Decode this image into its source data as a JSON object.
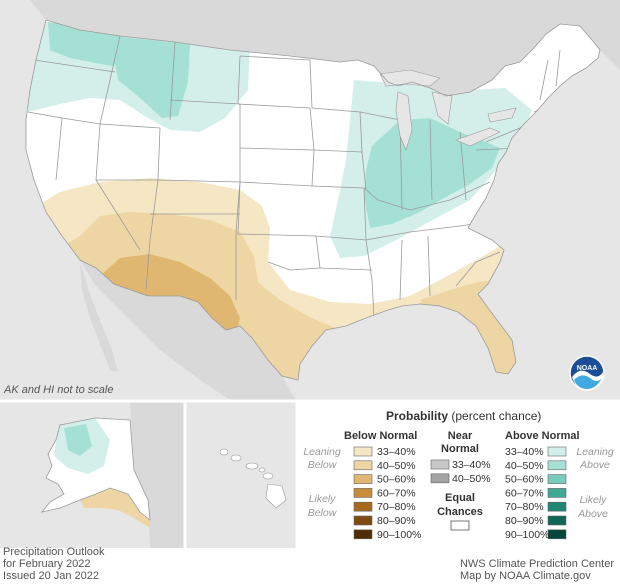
{
  "note": "AK and HI not to scale",
  "footer": {
    "left_line1": "Precipitation Outlook",
    "left_line2": "for February 2022",
    "left_line3": "Issued 20 Jan 2022",
    "right_line1": "NWS Climate Prediction Center",
    "right_line2": "Map by NOAA Climate.gov"
  },
  "logo": {
    "text": "NOAA"
  },
  "legend": {
    "title": "Probability",
    "subtitle": "(percent chance)",
    "below_header": "Below Normal",
    "near_header_1": "Near",
    "near_header_2": "Normal",
    "above_header": "Above Normal",
    "leaning_below_1": "Leaning",
    "leaning_below_2": "Below",
    "likely_below_1": "Likely",
    "likely_below_2": "Below",
    "leaning_above_1": "Leaning",
    "leaning_above_2": "Above",
    "likely_above_1": "Likely",
    "likely_above_2": "Above",
    "equal_1": "Equal",
    "equal_2": "Chances",
    "below": [
      {
        "label": "33–40%",
        "color": "#f5e7c3"
      },
      {
        "label": "40–50%",
        "color": "#eed6a4"
      },
      {
        "label": "50–60%",
        "color": "#dfb770"
      },
      {
        "label": "60–70%",
        "color": "#c98c3a"
      },
      {
        "label": "70–80%",
        "color": "#a8681f"
      },
      {
        "label": "80–90%",
        "color": "#7d4a10"
      },
      {
        "label": "90–100%",
        "color": "#4e2c05"
      }
    ],
    "near": [
      {
        "label": "33–40%",
        "color": "#c8c8c8"
      },
      {
        "label": "40–50%",
        "color": "#a3a3a3"
      }
    ],
    "above": [
      {
        "label": "33–40%",
        "color": "#d4efea"
      },
      {
        "label": "40–50%",
        "color": "#a5e0d5"
      },
      {
        "label": "50–60%",
        "color": "#7acbbd"
      },
      {
        "label": "60–70%",
        "color": "#3fa895"
      },
      {
        "label": "70–80%",
        "color": "#1f8673"
      },
      {
        "label": "80–90%",
        "color": "#0f6656"
      },
      {
        "label": "90–100%",
        "color": "#05463a"
      }
    ],
    "equal_color": "#ffffff"
  },
  "colors": {
    "sea": "#e6e6e6",
    "land": "#ffffff",
    "foreign_land": "#d9d9d9",
    "border": "#9a9a9a"
  }
}
